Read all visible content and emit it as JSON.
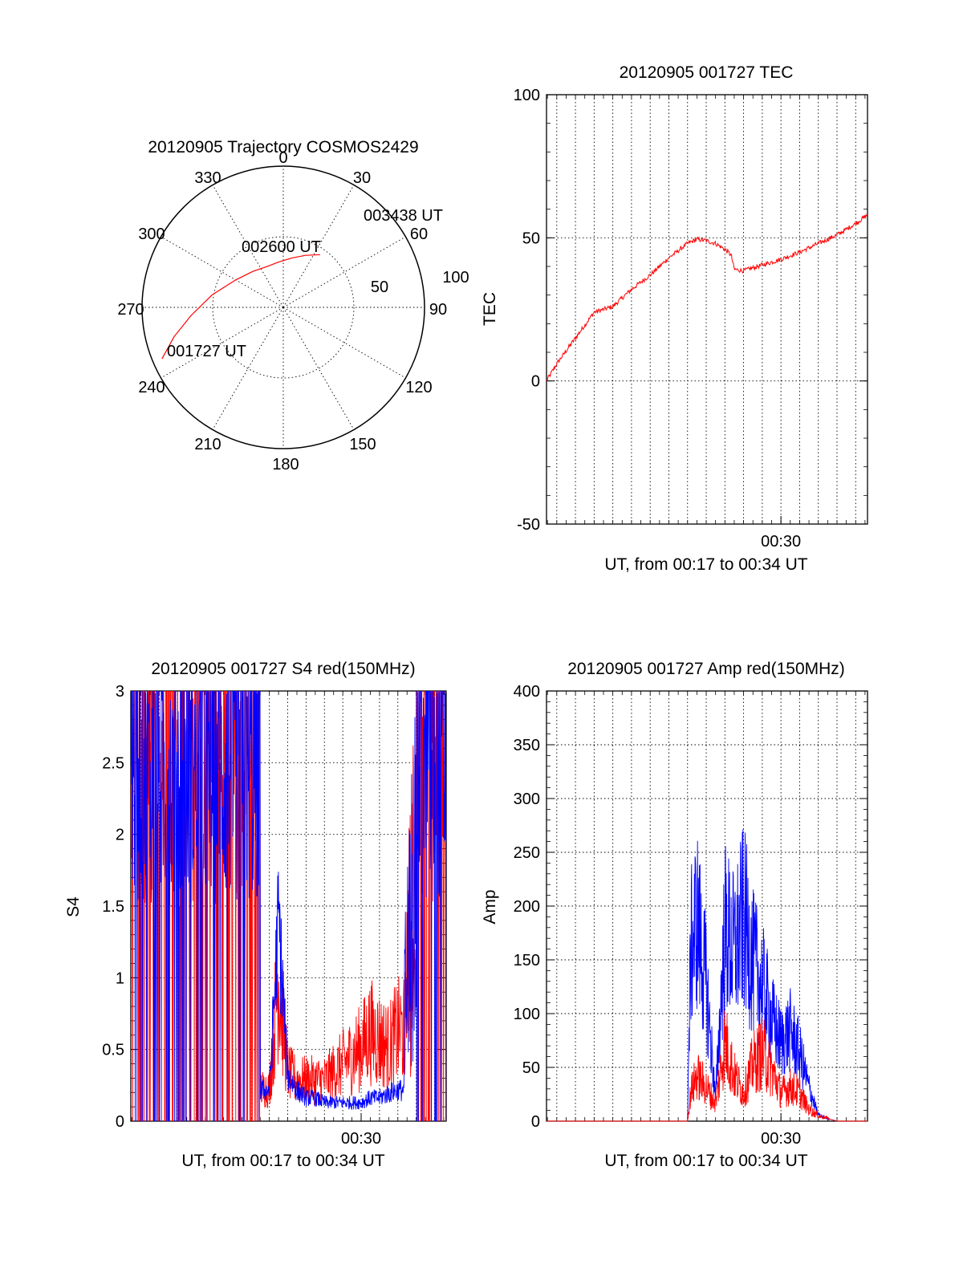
{
  "colors": {
    "red": "#ff0000",
    "blue": "#0000ff",
    "axis": "#000000",
    "background": "#ffffff"
  },
  "chart_data": [
    {
      "type": "polar",
      "id": "trajectory",
      "title": "20120905 Trajectory COSMOS2429",
      "azimuth_labels": [
        "0",
        "30",
        "60",
        "90",
        "120",
        "150",
        "180",
        "210",
        "240",
        "270",
        "300",
        "330"
      ],
      "elevation_ring_labels": [
        "50",
        "100"
      ],
      "series": [
        {
          "color": "#ff0000",
          "points_az_el": [
            [
              247,
              6
            ],
            [
              255,
              18
            ],
            [
              265,
              31
            ],
            [
              280,
              44
            ],
            [
              300,
              55
            ],
            [
              320,
              60
            ],
            [
              338,
              62
            ],
            [
              354,
              61
            ],
            [
              10,
              58
            ],
            [
              23,
              54
            ],
            [
              35,
              49
            ]
          ]
        }
      ],
      "annotations": [
        {
          "text": "001727 UT",
          "az": 247,
          "el": 6
        },
        {
          "text": "002600 UT",
          "az": 318,
          "el": 62
        },
        {
          "text": "003438 UT",
          "az": 35,
          "el": 49
        }
      ]
    },
    {
      "type": "line",
      "id": "tec",
      "title": "20120905 001727 TEC",
      "xlabel": "UT, from 00:17 to 00:34 UT",
      "ylabel": "TEC",
      "xlim": [
        "00:17",
        "00:34"
      ],
      "ylim": [
        -50,
        100
      ],
      "yticks": [
        "-50",
        "0",
        "50",
        "100"
      ],
      "xticks": [
        {
          "label": "00:30",
          "t": "00:30"
        }
      ],
      "grid": true,
      "series": [
        {
          "color": "#ff0000",
          "x": [
            "00:17:27",
            "00:18:00",
            "00:19:00",
            "00:20:00",
            "00:21:00",
            "00:22:00",
            "00:23:00",
            "00:24:00",
            "00:25:00",
            "00:25:30",
            "00:26:00",
            "00:26:30",
            "00:27:00",
            "00:27:20",
            "00:27:30",
            "00:28:00",
            "00:29:00",
            "00:30:00",
            "00:31:00",
            "00:32:00",
            "00:33:00",
            "00:34:00",
            "00:34:38"
          ],
          "y": [
            0,
            6,
            15,
            24,
            26,
            32,
            37,
            43,
            48,
            49.5,
            49,
            48,
            46,
            44,
            39,
            38.5,
            40.5,
            42.5,
            45,
            48,
            51,
            55,
            58
          ]
        }
      ]
    },
    {
      "type": "line",
      "id": "s4",
      "title": "20120905 001727 S4 red(150MHz)",
      "xlabel": "UT, from 00:17 to 00:34 UT",
      "ylabel": "S4",
      "xlim": [
        "00:17",
        "00:34"
      ],
      "ylim": [
        0,
        3
      ],
      "yticks": [
        "0",
        "0.5",
        "1",
        "1.5",
        "2",
        "2.5",
        "3"
      ],
      "xticks": [
        {
          "label": "00:30",
          "t": "00:30"
        }
      ],
      "grid": true,
      "series": [
        {
          "color": "#ff0000",
          "x": [
            "00:24:30",
            "00:25:00",
            "00:25:30",
            "00:26:00",
            "00:26:30",
            "00:27:00",
            "00:27:30",
            "00:28:00",
            "00:28:30",
            "00:29:00",
            "00:29:30",
            "00:30:00",
            "00:30:30",
            "00:31:00",
            "00:31:30",
            "00:32:00"
          ],
          "y": [
            0.2,
            0.2,
            0.9,
            0.3,
            0.25,
            0.25,
            0.25,
            0.25,
            0.3,
            0.35,
            0.4,
            0.45,
            0.55,
            0.5,
            0.45,
            0.55
          ],
          "note_region": "00:17-00:24 and 00:33-00:34 saturated/noisy near 3"
        },
        {
          "color": "#0000ff",
          "x": [
            "00:24:30",
            "00:25:00",
            "00:25:30",
            "00:26:00",
            "00:26:30",
            "00:27:00",
            "00:27:30",
            "00:28:00",
            "00:28:30",
            "00:29:00",
            "00:29:30",
            "00:30:00",
            "00:30:30",
            "00:31:00",
            "00:31:30",
            "00:32:00"
          ],
          "y": [
            0.2,
            0.2,
            1.3,
            0.3,
            0.2,
            0.15,
            0.15,
            0.12,
            0.12,
            0.12,
            0.12,
            0.12,
            0.15,
            0.15,
            0.18,
            0.2
          ]
        }
      ]
    },
    {
      "type": "line",
      "id": "amp",
      "title": "20120905 001727 Amp red(150MHz)",
      "xlabel": "UT, from 00:17 to 00:34 UT",
      "ylabel": "Amp",
      "xlim": [
        "00:17",
        "00:34"
      ],
      "ylim": [
        0,
        400
      ],
      "yticks": [
        "0",
        "50",
        "100",
        "150",
        "200",
        "250",
        "300",
        "350",
        "400"
      ],
      "xticks": [
        {
          "label": "00:30",
          "t": "00:30"
        }
      ],
      "grid": true,
      "series": [
        {
          "color": "#0000ff",
          "x": [
            "00:17:27",
            "00:25:00",
            "00:25:10",
            "00:25:30",
            "00:26:00",
            "00:26:30",
            "00:27:00",
            "00:27:30",
            "00:28:00",
            "00:28:30",
            "00:29:00",
            "00:29:30",
            "00:30:00",
            "00:30:30",
            "00:31:00",
            "00:31:30",
            "00:32:00",
            "00:33:00",
            "00:34:38"
          ],
          "y": [
            0,
            0,
            150,
            180,
            120,
            20,
            170,
            150,
            180,
            140,
            120,
            90,
            70,
            80,
            60,
            30,
            5,
            0,
            0
          ]
        },
        {
          "color": "#ff0000",
          "x": [
            "00:17:27",
            "00:25:00",
            "00:25:10",
            "00:25:30",
            "00:26:00",
            "00:26:30",
            "00:27:00",
            "00:27:30",
            "00:28:00",
            "00:28:30",
            "00:29:00",
            "00:29:30",
            "00:30:00",
            "00:30:30",
            "00:31:00",
            "00:31:30",
            "00:32:00",
            "00:33:00",
            "00:34:38"
          ],
          "y": [
            0,
            0,
            25,
            40,
            30,
            15,
            70,
            40,
            25,
            50,
            60,
            45,
            25,
            30,
            25,
            10,
            5,
            0,
            0
          ]
        }
      ]
    }
  ]
}
